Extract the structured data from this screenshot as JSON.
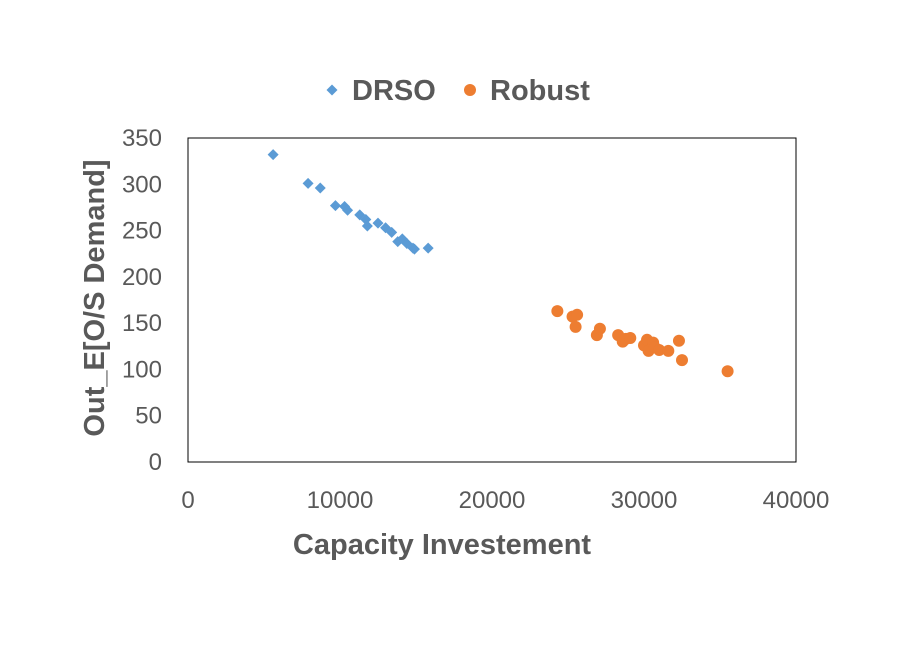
{
  "chart_data": {
    "type": "scatter",
    "xlabel": "Capacity Investement",
    "ylabel": "Out_E[O/S Demand]",
    "xlim": [
      0,
      40000
    ],
    "ylim": [
      0,
      350
    ],
    "xticks": [
      0,
      10000,
      20000,
      30000,
      40000
    ],
    "yticks": [
      0,
      50,
      100,
      150,
      200,
      250,
      300,
      350
    ],
    "xtick_labels": [
      "0",
      "10000",
      "20000",
      "30000",
      "40000"
    ],
    "ytick_labels": [
      "0",
      "50",
      "100",
      "150",
      "200",
      "250",
      "300",
      "350"
    ],
    "grid": false,
    "legend_position": "top",
    "series": [
      {
        "name": "DRSO",
        "marker": "diamond",
        "color": "#5B9BD5",
        "points": [
          [
            5600,
            332
          ],
          [
            7900,
            301
          ],
          [
            8700,
            296
          ],
          [
            9700,
            277
          ],
          [
            10300,
            276
          ],
          [
            10500,
            272
          ],
          [
            11300,
            267
          ],
          [
            11700,
            262
          ],
          [
            11800,
            255
          ],
          [
            12500,
            258
          ],
          [
            13000,
            253
          ],
          [
            13400,
            248
          ],
          [
            13800,
            238
          ],
          [
            14100,
            241
          ],
          [
            14400,
            236
          ],
          [
            14800,
            231
          ],
          [
            14900,
            230
          ],
          [
            15800,
            231
          ]
        ]
      },
      {
        "name": "Robust",
        "marker": "circle",
        "color": "#ED7D31",
        "points": [
          [
            24300,
            163
          ],
          [
            25300,
            157
          ],
          [
            25600,
            159
          ],
          [
            25500,
            146
          ],
          [
            26900,
            137
          ],
          [
            27100,
            144
          ],
          [
            28300,
            137
          ],
          [
            28600,
            130
          ],
          [
            28800,
            133
          ],
          [
            29100,
            134
          ],
          [
            30000,
            126
          ],
          [
            30200,
            132
          ],
          [
            30300,
            120
          ],
          [
            30600,
            129
          ],
          [
            30700,
            124
          ],
          [
            31000,
            121
          ],
          [
            31600,
            120
          ],
          [
            32300,
            131
          ],
          [
            32500,
            110
          ],
          [
            35500,
            98
          ]
        ]
      }
    ]
  }
}
